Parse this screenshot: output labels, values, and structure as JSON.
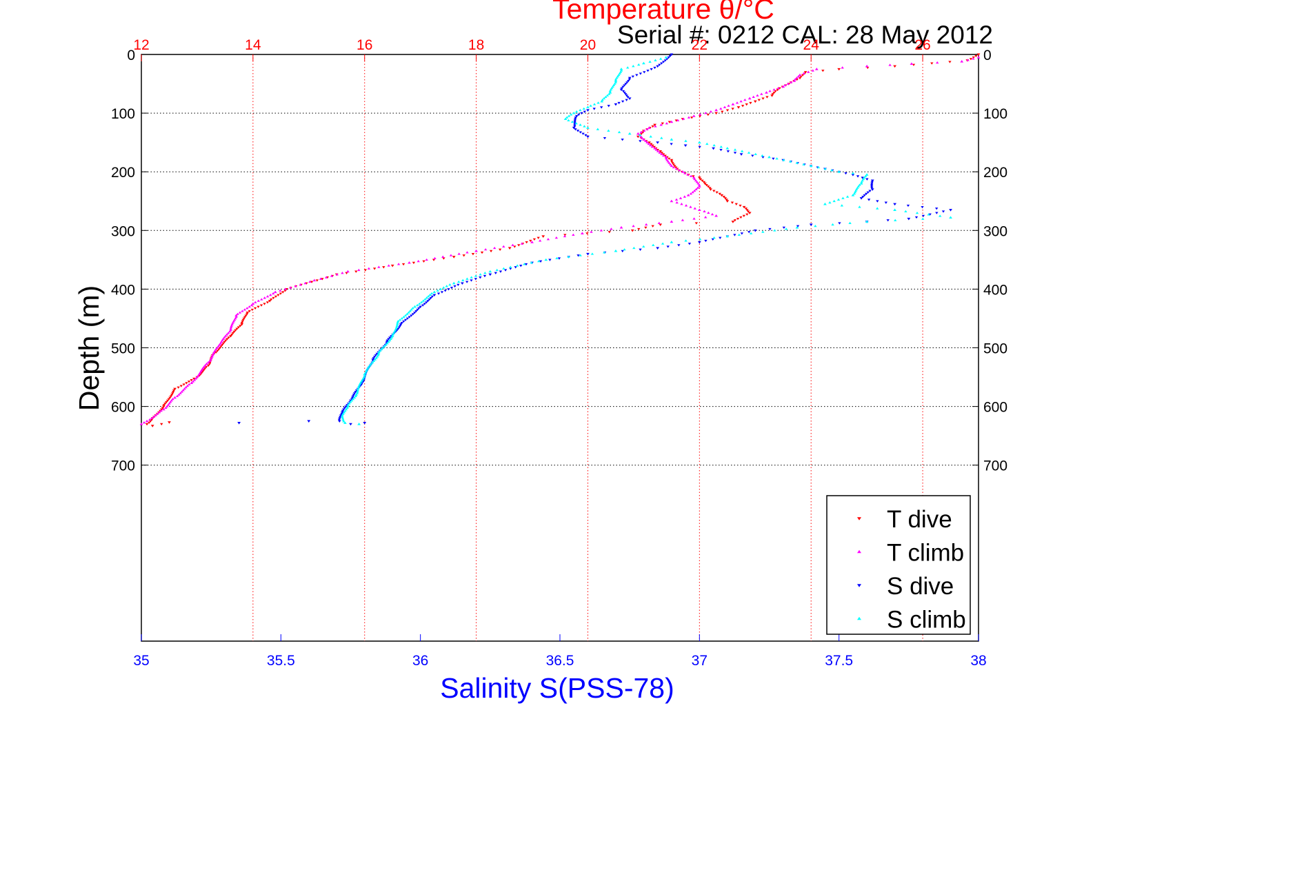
{
  "chart_data": {
    "type": "scatter",
    "title": "Temperature θ/°C",
    "subtitle": "Serial #: 0212  CAL: 28 May 2012",
    "top_axis": {
      "label": "Temperature θ/°C",
      "range": [
        12,
        27
      ],
      "ticks": [
        "12",
        "14",
        "16",
        "18",
        "20",
        "22",
        "24",
        "26"
      ],
      "tick_values": [
        12,
        14,
        16,
        18,
        20,
        22,
        24,
        26
      ],
      "color": "#ff0000",
      "grid": true
    },
    "bottom_axis": {
      "label": "Salinity S(PSS-78)",
      "range": [
        35,
        38
      ],
      "ticks": [
        "35",
        "35.5",
        "36",
        "36.5",
        "37",
        "37.5",
        "38"
      ],
      "tick_values": [
        35,
        35.5,
        36,
        36.5,
        37,
        37.5,
        38
      ],
      "color": "#0000ff",
      "grid": false
    },
    "y_axis": {
      "label": "Depth (m)",
      "range": [
        0,
        1000
      ],
      "reversed": true,
      "ticks": [
        "0",
        "100",
        "200",
        "300",
        "400",
        "500",
        "600",
        "700"
      ],
      "tick_values": [
        0,
        100,
        200,
        300,
        400,
        500,
        600,
        700
      ],
      "grid": true
    },
    "legend": {
      "placement": "bottom-right"
    },
    "series": [
      {
        "name": "T dive",
        "axis": "top",
        "color": "#ff0000",
        "marker": "triangle-down",
        "points": [
          [
            27.0,
            0
          ],
          [
            26.8,
            10
          ],
          [
            25.5,
            20
          ],
          [
            24.5,
            25
          ],
          [
            23.9,
            30
          ],
          [
            23.8,
            40
          ],
          [
            23.6,
            50
          ],
          [
            23.4,
            60
          ],
          [
            23.3,
            70
          ],
          [
            23.0,
            80
          ],
          [
            22.7,
            90
          ],
          [
            22.3,
            100
          ],
          [
            21.7,
            110
          ],
          [
            21.2,
            120
          ],
          [
            21.0,
            130
          ],
          [
            20.9,
            140
          ],
          [
            21.1,
            150
          ],
          [
            21.3,
            165
          ],
          [
            21.5,
            180
          ],
          [
            21.6,
            195
          ],
          [
            21.8,
            205
          ],
          [
            22.0,
            210
          ],
          [
            22.1,
            220
          ],
          [
            22.2,
            230
          ],
          [
            22.4,
            240
          ],
          [
            22.5,
            250
          ],
          [
            22.8,
            260
          ],
          [
            22.9,
            270
          ],
          [
            22.6,
            285
          ],
          [
            21.3,
            290
          ],
          [
            20.8,
            300
          ],
          [
            19.2,
            310
          ],
          [
            18.6,
            330
          ],
          [
            17.6,
            345
          ],
          [
            16.5,
            360
          ],
          [
            15.5,
            375
          ],
          [
            14.6,
            400
          ],
          [
            14.3,
            420
          ],
          [
            13.9,
            440
          ],
          [
            13.8,
            460
          ],
          [
            13.6,
            480
          ],
          [
            13.3,
            510
          ],
          [
            13.2,
            530
          ],
          [
            13.0,
            550
          ],
          [
            12.6,
            570
          ],
          [
            12.4,
            600
          ],
          [
            12.2,
            620
          ],
          [
            12.1,
            630
          ],
          [
            12.5,
            627
          ],
          [
            12.2,
            633
          ]
        ]
      },
      {
        "name": "T climb",
        "axis": "top",
        "color": "#ff00ff",
        "marker": "triangle-up",
        "points": [
          [
            27.0,
            5
          ],
          [
            26.7,
            12
          ],
          [
            25.8,
            16
          ],
          [
            25.0,
            20
          ],
          [
            24.1,
            25
          ],
          [
            23.8,
            35
          ],
          [
            23.7,
            45
          ],
          [
            23.5,
            55
          ],
          [
            23.2,
            65
          ],
          [
            22.9,
            75
          ],
          [
            22.6,
            85
          ],
          [
            22.3,
            95
          ],
          [
            21.9,
            105
          ],
          [
            21.5,
            115
          ],
          [
            21.1,
            125
          ],
          [
            20.9,
            135
          ],
          [
            21.0,
            145
          ],
          [
            21.2,
            160
          ],
          [
            21.4,
            175
          ],
          [
            21.5,
            190
          ],
          [
            21.7,
            200
          ],
          [
            21.9,
            210
          ],
          [
            22.0,
            225
          ],
          [
            21.8,
            240
          ],
          [
            21.5,
            250
          ],
          [
            22.0,
            265
          ],
          [
            22.3,
            275
          ],
          [
            21.5,
            285
          ],
          [
            20.6,
            295
          ],
          [
            19.9,
            305
          ],
          [
            19.0,
            320
          ],
          [
            18.0,
            335
          ],
          [
            16.8,
            355
          ],
          [
            15.7,
            370
          ],
          [
            15.1,
            385
          ],
          [
            14.4,
            405
          ],
          [
            14.0,
            425
          ],
          [
            13.7,
            445
          ],
          [
            13.6,
            470
          ],
          [
            13.4,
            495
          ],
          [
            13.2,
            525
          ],
          [
            12.9,
            560
          ],
          [
            12.6,
            585
          ],
          [
            12.4,
            605
          ],
          [
            12.1,
            625
          ],
          [
            12.0,
            630
          ]
        ]
      },
      {
        "name": "S dive",
        "axis": "bottom",
        "color": "#0000ff",
        "marker": "triangle-down",
        "points": [
          [
            36.9,
            0
          ],
          [
            36.85,
            20
          ],
          [
            36.75,
            40
          ],
          [
            36.72,
            60
          ],
          [
            36.75,
            75
          ],
          [
            36.7,
            85
          ],
          [
            36.6,
            95
          ],
          [
            36.56,
            105
          ],
          [
            36.55,
            125
          ],
          [
            36.6,
            140
          ],
          [
            36.85,
            150
          ],
          [
            36.95,
            155
          ],
          [
            37.05,
            160
          ],
          [
            37.15,
            170
          ],
          [
            37.3,
            180
          ],
          [
            37.45,
            195
          ],
          [
            37.55,
            205
          ],
          [
            37.62,
            215
          ],
          [
            37.62,
            230
          ],
          [
            37.58,
            245
          ],
          [
            37.7,
            255
          ],
          [
            37.9,
            265
          ],
          [
            37.75,
            280
          ],
          [
            37.6,
            285
          ],
          [
            37.4,
            290
          ],
          [
            37.2,
            300
          ],
          [
            37.0,
            320
          ],
          [
            36.85,
            330
          ],
          [
            36.6,
            340
          ],
          [
            36.4,
            355
          ],
          [
            36.25,
            375
          ],
          [
            36.15,
            390
          ],
          [
            36.05,
            410
          ],
          [
            36.0,
            430
          ],
          [
            35.93,
            460
          ],
          [
            35.88,
            490
          ],
          [
            35.83,
            520
          ],
          [
            35.79,
            560
          ],
          [
            35.75,
            590
          ],
          [
            35.72,
            610
          ],
          [
            35.71,
            625
          ],
          [
            35.6,
            625
          ],
          [
            35.35,
            628
          ],
          [
            35.75,
            630
          ],
          [
            35.8,
            628
          ]
        ]
      },
      {
        "name": "S climb",
        "axis": "bottom",
        "color": "#00ffff",
        "marker": "triangle-up",
        "points": [
          [
            36.88,
            5
          ],
          [
            36.8,
            15
          ],
          [
            36.72,
            25
          ],
          [
            36.7,
            45
          ],
          [
            36.68,
            65
          ],
          [
            36.65,
            80
          ],
          [
            36.6,
            90
          ],
          [
            36.55,
            100
          ],
          [
            36.52,
            110
          ],
          [
            36.6,
            125
          ],
          [
            36.75,
            135
          ],
          [
            36.9,
            145
          ],
          [
            37.0,
            150
          ],
          [
            37.1,
            160
          ],
          [
            37.25,
            175
          ],
          [
            37.4,
            190
          ],
          [
            37.5,
            200
          ],
          [
            37.6,
            205
          ],
          [
            37.58,
            220
          ],
          [
            37.55,
            240
          ],
          [
            37.45,
            255
          ],
          [
            37.7,
            265
          ],
          [
            37.9,
            278
          ],
          [
            37.6,
            285
          ],
          [
            37.35,
            295
          ],
          [
            37.1,
            310
          ],
          [
            36.9,
            320
          ],
          [
            36.7,
            335
          ],
          [
            36.45,
            350
          ],
          [
            36.25,
            370
          ],
          [
            36.12,
            390
          ],
          [
            36.05,
            405
          ],
          [
            35.98,
            430
          ],
          [
            35.92,
            455
          ],
          [
            35.9,
            480
          ],
          [
            35.85,
            510
          ],
          [
            35.8,
            545
          ],
          [
            35.77,
            580
          ],
          [
            35.74,
            600
          ],
          [
            35.72,
            618
          ],
          [
            35.73,
            628
          ],
          [
            35.78,
            630
          ]
        ]
      }
    ]
  }
}
